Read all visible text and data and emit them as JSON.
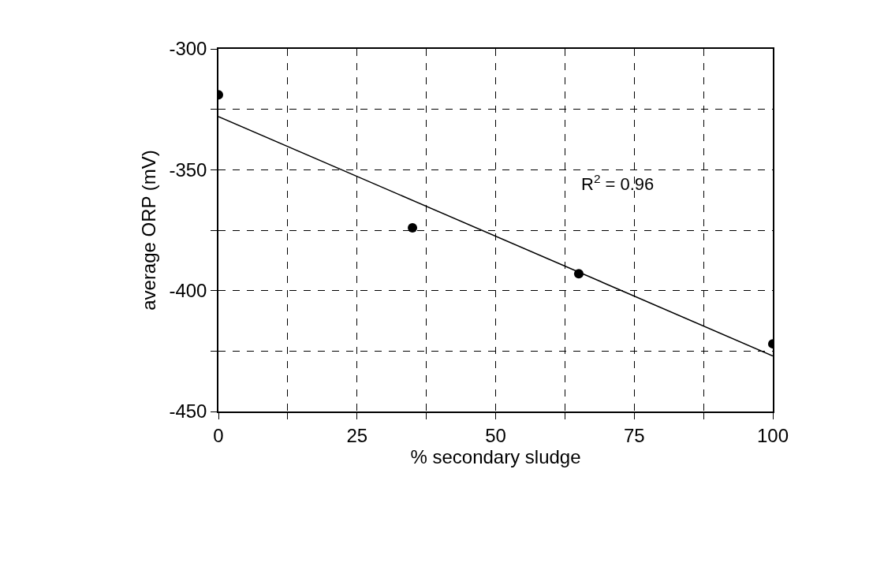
{
  "chart_data": {
    "type": "scatter",
    "xlabel": "% secondary sludge",
    "ylabel": "average ORP (mV)",
    "xlim": [
      0,
      100
    ],
    "ylim": [
      -450,
      -300
    ],
    "xticks": [
      0,
      {
        "value": 12.5,
        "label": null
      },
      25,
      {
        "value": 37.5,
        "label": null
      },
      50,
      {
        "value": 62.5,
        "label": null
      },
      75,
      {
        "value": 87.5,
        "label": null
      },
      100
    ],
    "yticks": [
      -450,
      {
        "value": -425,
        "label": null
      },
      -400,
      {
        "value": -375,
        "label": null
      },
      -350,
      {
        "value": -325,
        "label": null
      },
      -300
    ],
    "grid": true,
    "marker": "circle",
    "series": [
      {
        "color": "#000000",
        "x": [
          0,
          35,
          65,
          100
        ],
        "values": [
          -319,
          -374,
          -393,
          -422
        ]
      },
      {
        "type": "line",
        "color": "#000000",
        "x": [
          0,
          100
        ],
        "values": [
          -328,
          -427
        ],
        "line_style": "solid",
        "marker": "none"
      }
    ],
    "annotations": [
      "R$^{2}$ = 0.96"
    ]
  }
}
